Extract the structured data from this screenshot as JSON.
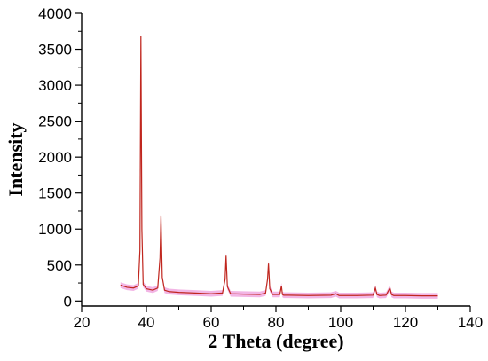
{
  "chart_data": {
    "type": "line",
    "title": "",
    "xlabel": "2 Theta (degree)",
    "ylabel": "Intensity",
    "xlim": [
      20,
      140
    ],
    "ylim": [
      -70,
      4000
    ],
    "x_ticks": [
      20,
      40,
      60,
      80,
      100,
      120,
      140
    ],
    "y_ticks": [
      0,
      500,
      1000,
      1500,
      2000,
      2500,
      3000,
      3500,
      4000
    ],
    "grid": false,
    "legend": "none",
    "series": [
      {
        "colors": {
          "line": "#c0261e",
          "background_fill": "#e879d0"
        },
        "x": [
          32,
          34,
          36,
          37.5,
          38.0,
          38.3,
          38.6,
          39.0,
          40,
          42,
          43.5,
          44.2,
          44.5,
          44.9,
          45.6,
          47,
          50,
          55,
          60,
          63.5,
          64.3,
          64.6,
          65.0,
          66,
          70,
          75,
          76.8,
          77.4,
          77.7,
          78.1,
          79,
          81.2,
          81.7,
          82.0,
          82.4,
          84,
          90,
          97,
          98.5,
          99.5,
          105,
          110,
          110.7,
          111.2,
          112,
          114,
          115.2,
          115.7,
          116.4,
          120,
          125,
          130
        ],
        "y": [
          220,
          190,
          180,
          210,
          700,
          3680,
          1000,
          230,
          170,
          150,
          180,
          600,
          1190,
          330,
          150,
          130,
          120,
          110,
          100,
          110,
          300,
          630,
          200,
          100,
          95,
          90,
          110,
          300,
          520,
          170,
          90,
          90,
          210,
          90,
          80,
          80,
          75,
          80,
          100,
          75,
          75,
          80,
          180,
          90,
          75,
          80,
          180,
          90,
          75,
          75,
          70,
          70
        ]
      }
    ]
  }
}
